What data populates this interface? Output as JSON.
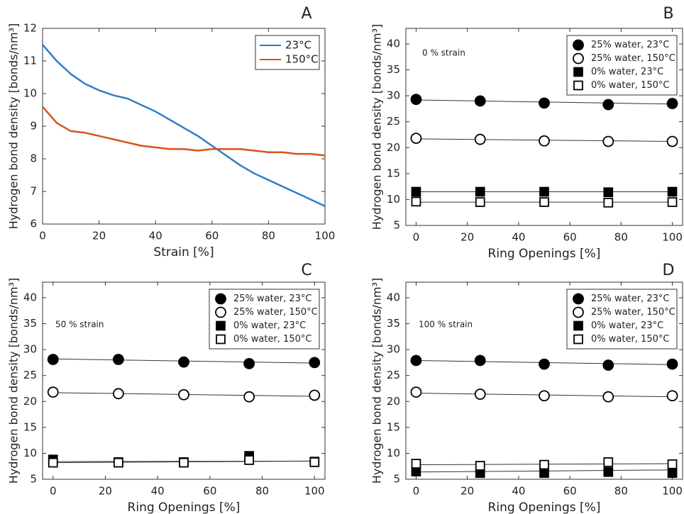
{
  "chart_data": [
    {
      "type": "line",
      "title": "A",
      "xlabel": "Strain [%]",
      "ylabel": "Hydrogen bond density [bonds/nm³]",
      "x": [
        0,
        5,
        10,
        15,
        20,
        25,
        30,
        35,
        40,
        45,
        50,
        55,
        60,
        65,
        70,
        75,
        80,
        85,
        90,
        95,
        100
      ],
      "series": [
        {
          "name": "23°C",
          "color": "#2c7fc8",
          "values": [
            11.5,
            11.0,
            10.6,
            10.3,
            10.1,
            9.95,
            9.85,
            9.65,
            9.45,
            9.2,
            8.95,
            8.7,
            8.4,
            8.1,
            7.8,
            7.55,
            7.35,
            7.15,
            6.95,
            6.75,
            6.55
          ]
        },
        {
          "name": "150°C",
          "color": "#d95319",
          "values": [
            9.6,
            9.1,
            8.85,
            8.8,
            8.7,
            8.6,
            8.5,
            8.4,
            8.35,
            8.3,
            8.3,
            8.25,
            8.3,
            8.3,
            8.3,
            8.25,
            8.2,
            8.2,
            8.15,
            8.15,
            8.1
          ]
        }
      ],
      "xlim": [
        0,
        100
      ],
      "xticks": [
        0,
        20,
        40,
        60,
        80,
        100
      ],
      "ylim": [
        6,
        12
      ],
      "yticks": [
        6,
        7,
        8,
        9,
        10,
        11,
        12
      ],
      "legend": "upper right"
    },
    {
      "type": "scatter",
      "title": "B",
      "annotation": "0 % strain",
      "xlabel": "Ring Openings [%]",
      "ylabel": "Hydrogen bond density [bonds/nm³]",
      "x": [
        0,
        25,
        50,
        75,
        100
      ],
      "series": [
        {
          "name": "25% water, 23°C",
          "color": "#000000",
          "marker": "circle",
          "facecolor": "#000000",
          "values": [
            29.3,
            29.0,
            28.6,
            28.3,
            28.5
          ],
          "fit": [
            29.2,
            28.4
          ]
        },
        {
          "name": "25% water, 150°C",
          "color": "#000000",
          "marker": "circle",
          "facecolor": "#ffffff",
          "values": [
            21.8,
            21.6,
            21.3,
            21.2,
            21.2
          ],
          "fit": [
            21.7,
            21.2
          ]
        },
        {
          "name": "0% water, 23°C",
          "color": "#000000",
          "marker": "square",
          "facecolor": "#000000",
          "values": [
            11.5,
            11.5,
            11.5,
            11.4,
            11.5
          ],
          "fit": [
            11.5,
            11.5
          ]
        },
        {
          "name": "0% water, 150°C",
          "color": "#000000",
          "marker": "square",
          "facecolor": "#ffffff",
          "values": [
            9.6,
            9.5,
            9.5,
            9.4,
            9.5
          ],
          "fit": [
            9.5,
            9.5
          ]
        }
      ],
      "xlim": [
        -4,
        104
      ],
      "xticks": [
        0,
        20,
        40,
        60,
        80,
        100
      ],
      "ylim": [
        5,
        43
      ],
      "yticks": [
        5,
        10,
        15,
        20,
        25,
        30,
        35,
        40
      ],
      "legend": "upper right"
    },
    {
      "type": "scatter",
      "title": "C",
      "annotation": "50 % strain",
      "xlabel": "Ring Openings [%]",
      "ylabel": "Hydrogen bond density [bonds/nm³]",
      "x": [
        0,
        25,
        50,
        75,
        100
      ],
      "series": [
        {
          "name": "25% water, 23°C",
          "color": "#000000",
          "marker": "circle",
          "facecolor": "#000000",
          "values": [
            28.1,
            28.1,
            27.6,
            27.3,
            27.5
          ],
          "fit": [
            28.2,
            27.4
          ]
        },
        {
          "name": "25% water, 150°C",
          "color": "#000000",
          "marker": "circle",
          "facecolor": "#ffffff",
          "values": [
            21.8,
            21.5,
            21.3,
            20.9,
            21.2
          ],
          "fit": [
            21.7,
            21.0
          ]
        },
        {
          "name": "0% water, 23°C",
          "color": "#000000",
          "marker": "square",
          "facecolor": "#000000",
          "values": [
            8.8,
            8.3,
            8.3,
            9.5,
            8.4
          ],
          "fit": [
            8.4,
            8.5
          ]
        },
        {
          "name": "0% water, 150°C",
          "color": "#000000",
          "marker": "square",
          "facecolor": "#ffffff",
          "values": [
            8.2,
            8.2,
            8.2,
            8.7,
            8.3
          ],
          "fit": [
            8.2,
            8.5
          ]
        }
      ],
      "xlim": [
        -4,
        104
      ],
      "xticks": [
        0,
        20,
        40,
        60,
        80,
        100
      ],
      "ylim": [
        5,
        43
      ],
      "yticks": [
        5,
        10,
        15,
        20,
        25,
        30,
        35,
        40
      ],
      "legend": "upper right"
    },
    {
      "type": "scatter",
      "title": "D",
      "annotation": "100 % strain",
      "xlabel": "Ring Openings [%]",
      "ylabel": "Hydrogen bond density [bonds/nm³]",
      "x": [
        0,
        25,
        50,
        75,
        100
      ],
      "series": [
        {
          "name": "25% water, 23°C",
          "color": "#000000",
          "marker": "circle",
          "facecolor": "#000000",
          "values": [
            27.9,
            27.9,
            27.2,
            27.0,
            27.2
          ],
          "fit": [
            27.9,
            27.1
          ]
        },
        {
          "name": "25% water, 150°C",
          "color": "#000000",
          "marker": "circle",
          "facecolor": "#ffffff",
          "values": [
            21.8,
            21.4,
            21.1,
            20.9,
            21.1
          ],
          "fit": [
            21.6,
            20.9
          ]
        },
        {
          "name": "0% water, 23°C",
          "color": "#000000",
          "marker": "square",
          "facecolor": "#000000",
          "values": [
            6.5,
            6.2,
            6.2,
            6.4,
            6.2
          ],
          "fit": [
            6.4,
            6.8
          ]
        },
        {
          "name": "0% water, 150°C",
          "color": "#000000",
          "marker": "square",
          "facecolor": "#ffffff",
          "values": [
            8.0,
            7.6,
            7.8,
            8.3,
            7.9
          ],
          "fit": [
            7.8,
            8.0
          ]
        }
      ],
      "xlim": [
        -4,
        104
      ],
      "xticks": [
        0,
        20,
        40,
        60,
        80,
        100
      ],
      "ylim": [
        5,
        43
      ],
      "yticks": [
        5,
        10,
        15,
        20,
        25,
        30,
        35,
        40
      ],
      "legend": "upper right"
    }
  ]
}
